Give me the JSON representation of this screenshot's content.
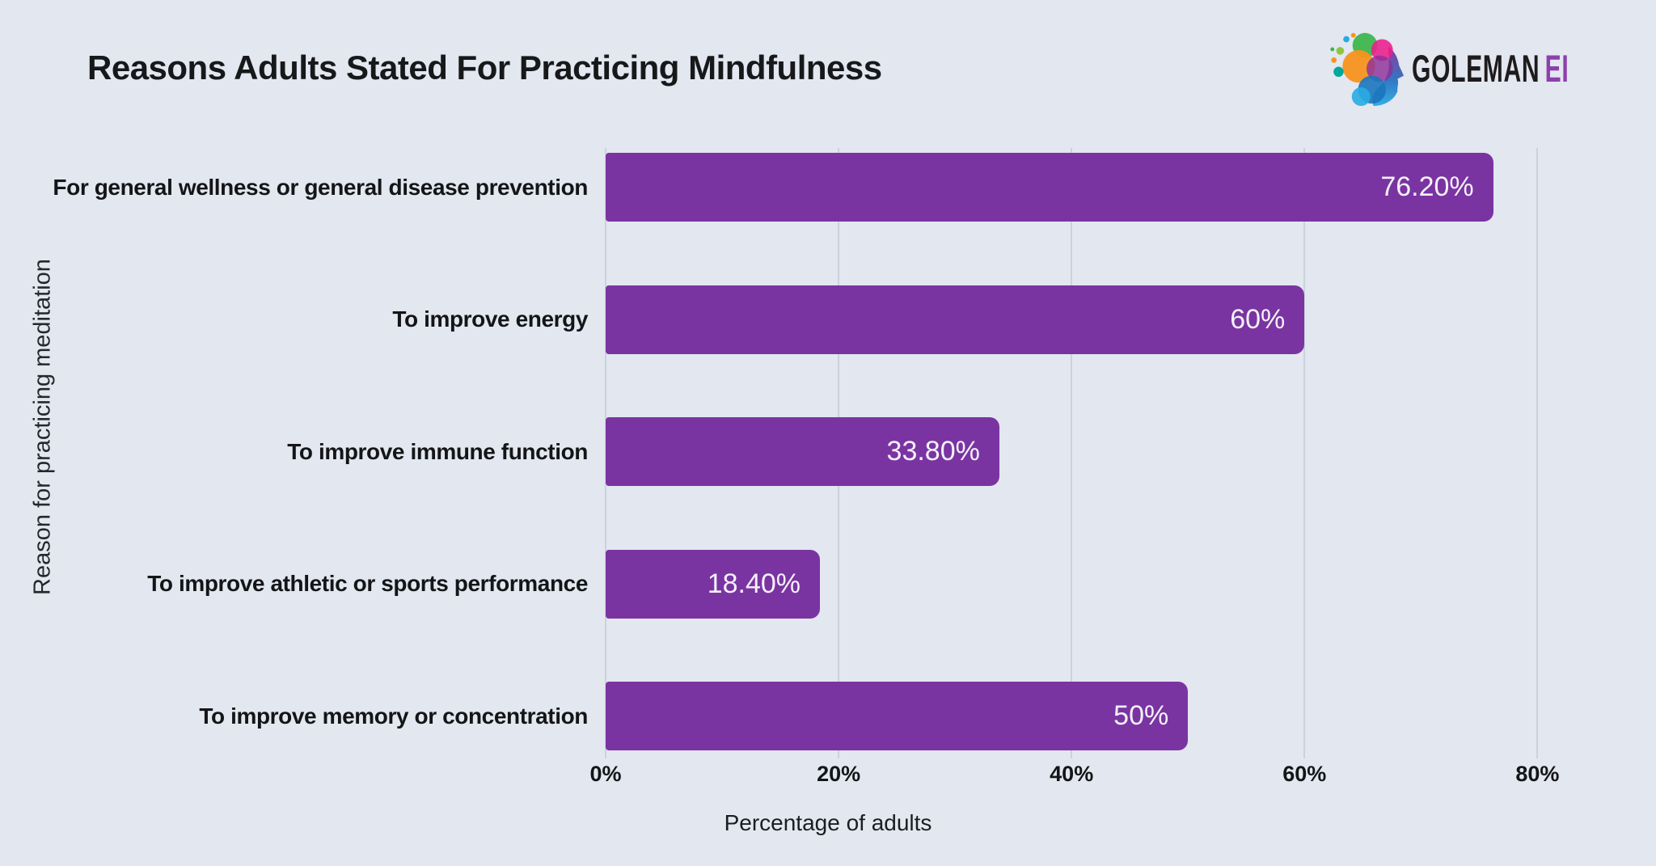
{
  "page": {
    "background": "#e2e7f0"
  },
  "header": {
    "title": "Reasons Adults Stated For Practicing Mindfulness",
    "logo": {
      "icon": "brain-head-profile-icon",
      "brand": "GOLEMAN",
      "suffix": "EI",
      "brand_color": "#1e1b1c",
      "suffix_color": "#8d3fae"
    }
  },
  "chart_data": {
    "type": "bar",
    "orientation": "horizontal",
    "title": "Reasons Adults Stated For Practicing Mindfulness",
    "xlabel": "Percentage of adults",
    "ylabel": "Reason for practicing meditation",
    "categories": [
      "For general wellness or general disease prevention",
      "To improve energy",
      "To improve immune function",
      "To improve athletic or sports performance",
      "To improve memory or concentration"
    ],
    "values": [
      76.2,
      60,
      33.8,
      18.4,
      50
    ],
    "value_labels": [
      "76.20%",
      "60%",
      "33.80%",
      "18.40%",
      "50%"
    ],
    "axis_max": 84,
    "xtick_values": [
      0,
      20,
      40,
      60,
      80
    ],
    "xtick_labels": [
      "0%",
      "20%",
      "40%",
      "60%",
      "80%"
    ],
    "grid": "vertical-gridlines",
    "legend": "none",
    "bar_color": "#7a34a2",
    "gridline_color": "#ccd2dd",
    "value_text_color": "#f4f1f8"
  }
}
